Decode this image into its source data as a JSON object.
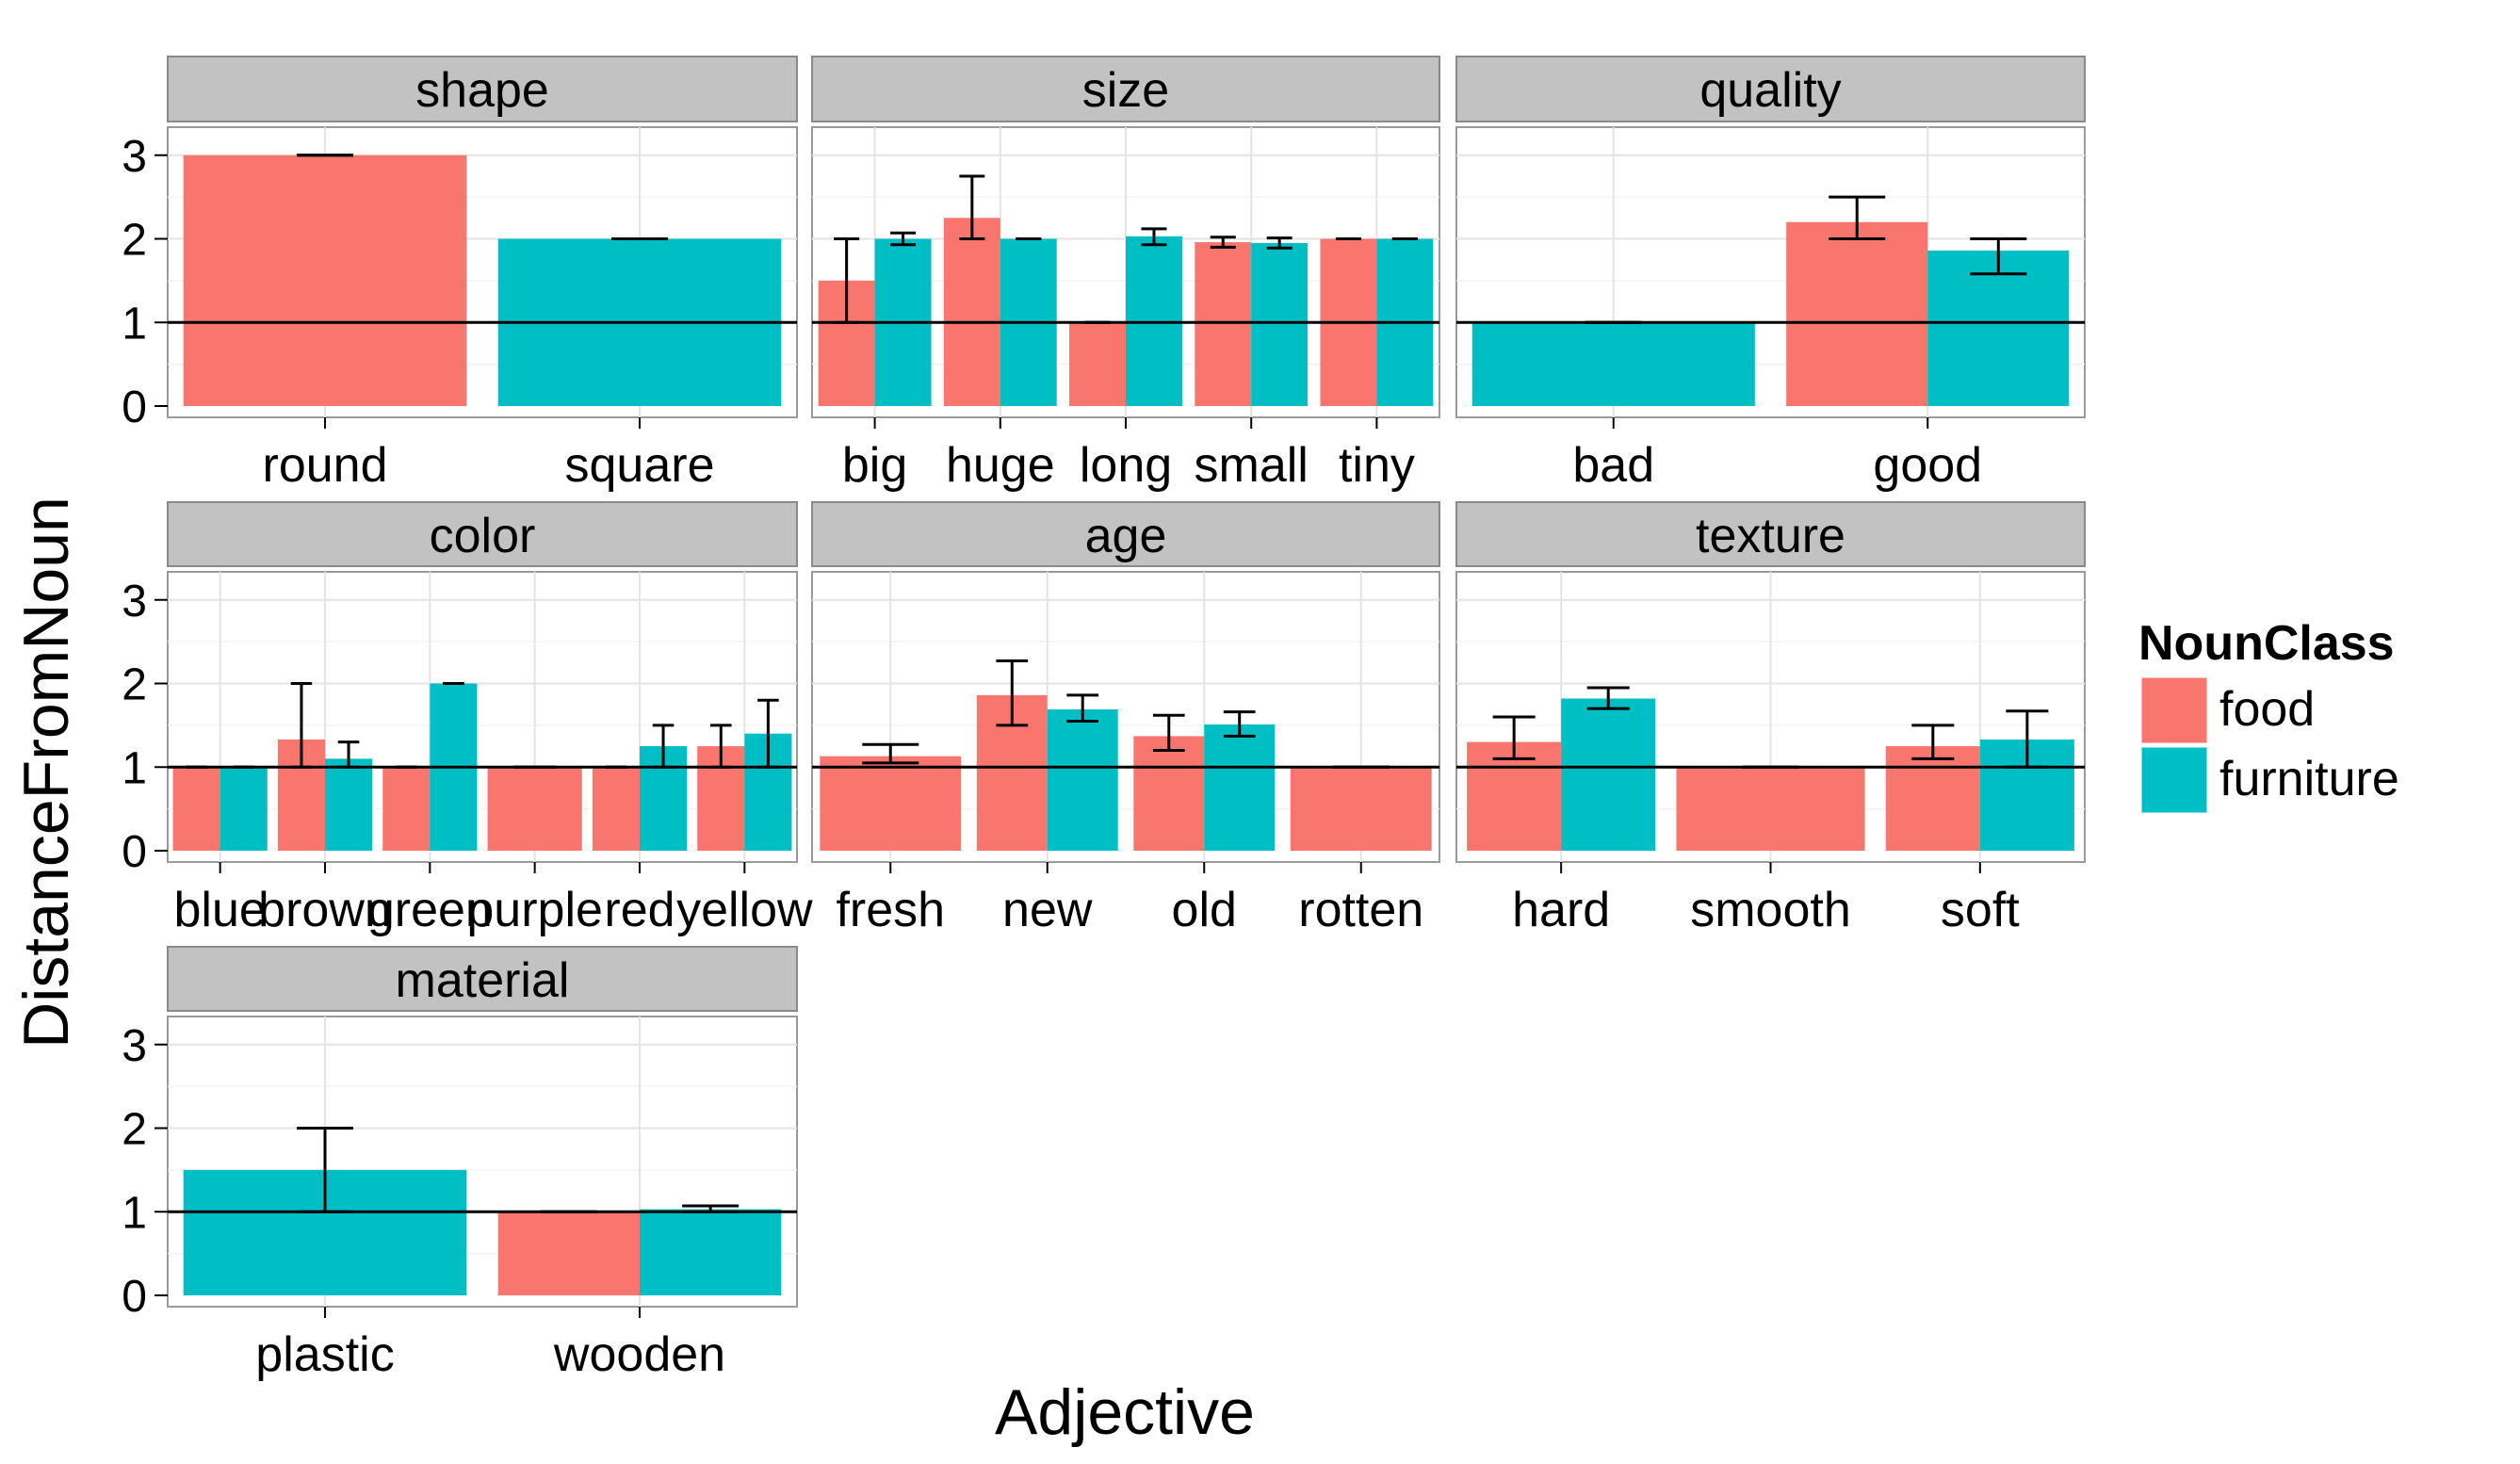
{
  "chart_data": {
    "type": "bar",
    "facets": true,
    "xlabel": "Adjective",
    "ylabel": "DistanceFromNoun",
    "ylim": [
      0,
      3.2
    ],
    "yticks": [
      0,
      1,
      2,
      3
    ],
    "reference_line": 1,
    "legend": {
      "title": "NounClass",
      "position": "right",
      "entries": [
        {
          "label": "food",
          "color": "#F8766D"
        },
        {
          "label": "furniture",
          "color": "#00BFC4"
        }
      ]
    },
    "panels": [
      {
        "title": "shape",
        "categories": [
          "round",
          "square"
        ],
        "bars": [
          {
            "cat": 0,
            "slot": "full",
            "class": "food",
            "value": 3.0,
            "err": [
              3.0,
              3.0
            ]
          },
          {
            "cat": 1,
            "slot": "full",
            "class": "furniture",
            "value": 2.0,
            "err": [
              2.0,
              2.0
            ]
          }
        ]
      },
      {
        "title": "size",
        "categories": [
          "big",
          "huge",
          "long",
          "small",
          "tiny"
        ],
        "bars": [
          {
            "cat": 0,
            "slot": "food",
            "class": "food",
            "value": 1.5,
            "err": [
              1.0,
              2.0
            ]
          },
          {
            "cat": 0,
            "slot": "furniture",
            "class": "furniture",
            "value": 2.0,
            "err": [
              1.93,
              2.07
            ]
          },
          {
            "cat": 1,
            "slot": "food",
            "class": "food",
            "value": 2.25,
            "err": [
              2.0,
              2.75
            ]
          },
          {
            "cat": 1,
            "slot": "furniture",
            "class": "furniture",
            "value": 2.0,
            "err": [
              2.0,
              2.0
            ]
          },
          {
            "cat": 2,
            "slot": "food",
            "class": "food",
            "value": 1.0,
            "err": [
              1.0,
              1.0
            ]
          },
          {
            "cat": 2,
            "slot": "furniture",
            "class": "furniture",
            "value": 2.03,
            "err": [
              1.93,
              2.12
            ]
          },
          {
            "cat": 3,
            "slot": "food",
            "class": "food",
            "value": 1.96,
            "err": [
              1.9,
              2.02
            ]
          },
          {
            "cat": 3,
            "slot": "furniture",
            "class": "furniture",
            "value": 1.95,
            "err": [
              1.89,
              2.01
            ]
          },
          {
            "cat": 4,
            "slot": "food",
            "class": "food",
            "value": 2.0,
            "err": [
              2.0,
              2.0
            ]
          },
          {
            "cat": 4,
            "slot": "furniture",
            "class": "furniture",
            "value": 2.0,
            "err": [
              2.0,
              2.0
            ]
          }
        ]
      },
      {
        "title": "quality",
        "categories": [
          "bad",
          "good"
        ],
        "bars": [
          {
            "cat": 0,
            "slot": "full",
            "class": "furniture",
            "value": 1.0,
            "err": [
              1.0,
              1.0
            ]
          },
          {
            "cat": 1,
            "slot": "food",
            "class": "food",
            "value": 2.2,
            "err": [
              2.0,
              2.5
            ]
          },
          {
            "cat": 1,
            "slot": "furniture",
            "class": "furniture",
            "value": 1.86,
            "err": [
              1.58,
              2.0
            ]
          }
        ]
      },
      {
        "title": "color",
        "categories": [
          "blue",
          "brown",
          "green",
          "purple",
          "red",
          "yellow"
        ],
        "bars": [
          {
            "cat": 0,
            "slot": "food",
            "class": "food",
            "value": 1.0,
            "err": [
              1.0,
              1.0
            ]
          },
          {
            "cat": 0,
            "slot": "furniture",
            "class": "furniture",
            "value": 1.0,
            "err": [
              1.0,
              1.0
            ]
          },
          {
            "cat": 1,
            "slot": "food",
            "class": "food",
            "value": 1.33,
            "err": [
              1.0,
              2.0
            ]
          },
          {
            "cat": 1,
            "slot": "furniture",
            "class": "furniture",
            "value": 1.1,
            "err": [
              1.0,
              1.3
            ]
          },
          {
            "cat": 2,
            "slot": "food",
            "class": "food",
            "value": 1.0,
            "err": [
              1.0,
              1.0
            ]
          },
          {
            "cat": 2,
            "slot": "furniture",
            "class": "furniture",
            "value": 2.0,
            "err": [
              2.0,
              2.0
            ]
          },
          {
            "cat": 3,
            "slot": "full",
            "class": "food",
            "value": 1.0,
            "err": [
              1.0,
              1.0
            ]
          },
          {
            "cat": 4,
            "slot": "food",
            "class": "food",
            "value": 1.0,
            "err": [
              1.0,
              1.0
            ]
          },
          {
            "cat": 4,
            "slot": "furniture",
            "class": "furniture",
            "value": 1.25,
            "err": [
              1.0,
              1.5
            ]
          },
          {
            "cat": 5,
            "slot": "food",
            "class": "food",
            "value": 1.25,
            "err": [
              1.0,
              1.5
            ]
          },
          {
            "cat": 5,
            "slot": "furniture",
            "class": "furniture",
            "value": 1.4,
            "err": [
              1.0,
              1.8
            ]
          }
        ]
      },
      {
        "title": "age",
        "categories": [
          "fresh",
          "new",
          "old",
          "rotten"
        ],
        "bars": [
          {
            "cat": 0,
            "slot": "full",
            "class": "food",
            "value": 1.13,
            "err": [
              1.05,
              1.27
            ]
          },
          {
            "cat": 1,
            "slot": "food",
            "class": "food",
            "value": 1.86,
            "err": [
              1.5,
              2.27
            ]
          },
          {
            "cat": 1,
            "slot": "furniture",
            "class": "furniture",
            "value": 1.69,
            "err": [
              1.55,
              1.86
            ]
          },
          {
            "cat": 2,
            "slot": "food",
            "class": "food",
            "value": 1.37,
            "err": [
              1.2,
              1.62
            ]
          },
          {
            "cat": 2,
            "slot": "furniture",
            "class": "furniture",
            "value": 1.51,
            "err": [
              1.37,
              1.66
            ]
          },
          {
            "cat": 3,
            "slot": "full",
            "class": "food",
            "value": 1.0,
            "err": [
              1.0,
              1.0
            ]
          }
        ]
      },
      {
        "title": "texture",
        "categories": [
          "hard",
          "smooth",
          "soft"
        ],
        "bars": [
          {
            "cat": 0,
            "slot": "food",
            "class": "food",
            "value": 1.3,
            "err": [
              1.1,
              1.6
            ]
          },
          {
            "cat": 0,
            "slot": "furniture",
            "class": "furniture",
            "value": 1.82,
            "err": [
              1.7,
              1.95
            ]
          },
          {
            "cat": 1,
            "slot": "full",
            "class": "food",
            "value": 1.0,
            "err": [
              1.0,
              1.0
            ]
          },
          {
            "cat": 2,
            "slot": "food",
            "class": "food",
            "value": 1.25,
            "err": [
              1.1,
              1.5
            ]
          },
          {
            "cat": 2,
            "slot": "furniture",
            "class": "furniture",
            "value": 1.33,
            "err": [
              1.0,
              1.67
            ]
          }
        ]
      },
      {
        "title": "material",
        "categories": [
          "plastic",
          "wooden"
        ],
        "bars": [
          {
            "cat": 0,
            "slot": "full",
            "class": "furniture",
            "value": 1.5,
            "err": [
              1.0,
              2.0
            ]
          },
          {
            "cat": 1,
            "slot": "food",
            "class": "food",
            "value": 1.0,
            "err": [
              1.0,
              1.0
            ]
          },
          {
            "cat": 1,
            "slot": "furniture",
            "class": "furniture",
            "value": 1.03,
            "err": [
              1.0,
              1.07
            ]
          }
        ]
      }
    ]
  }
}
